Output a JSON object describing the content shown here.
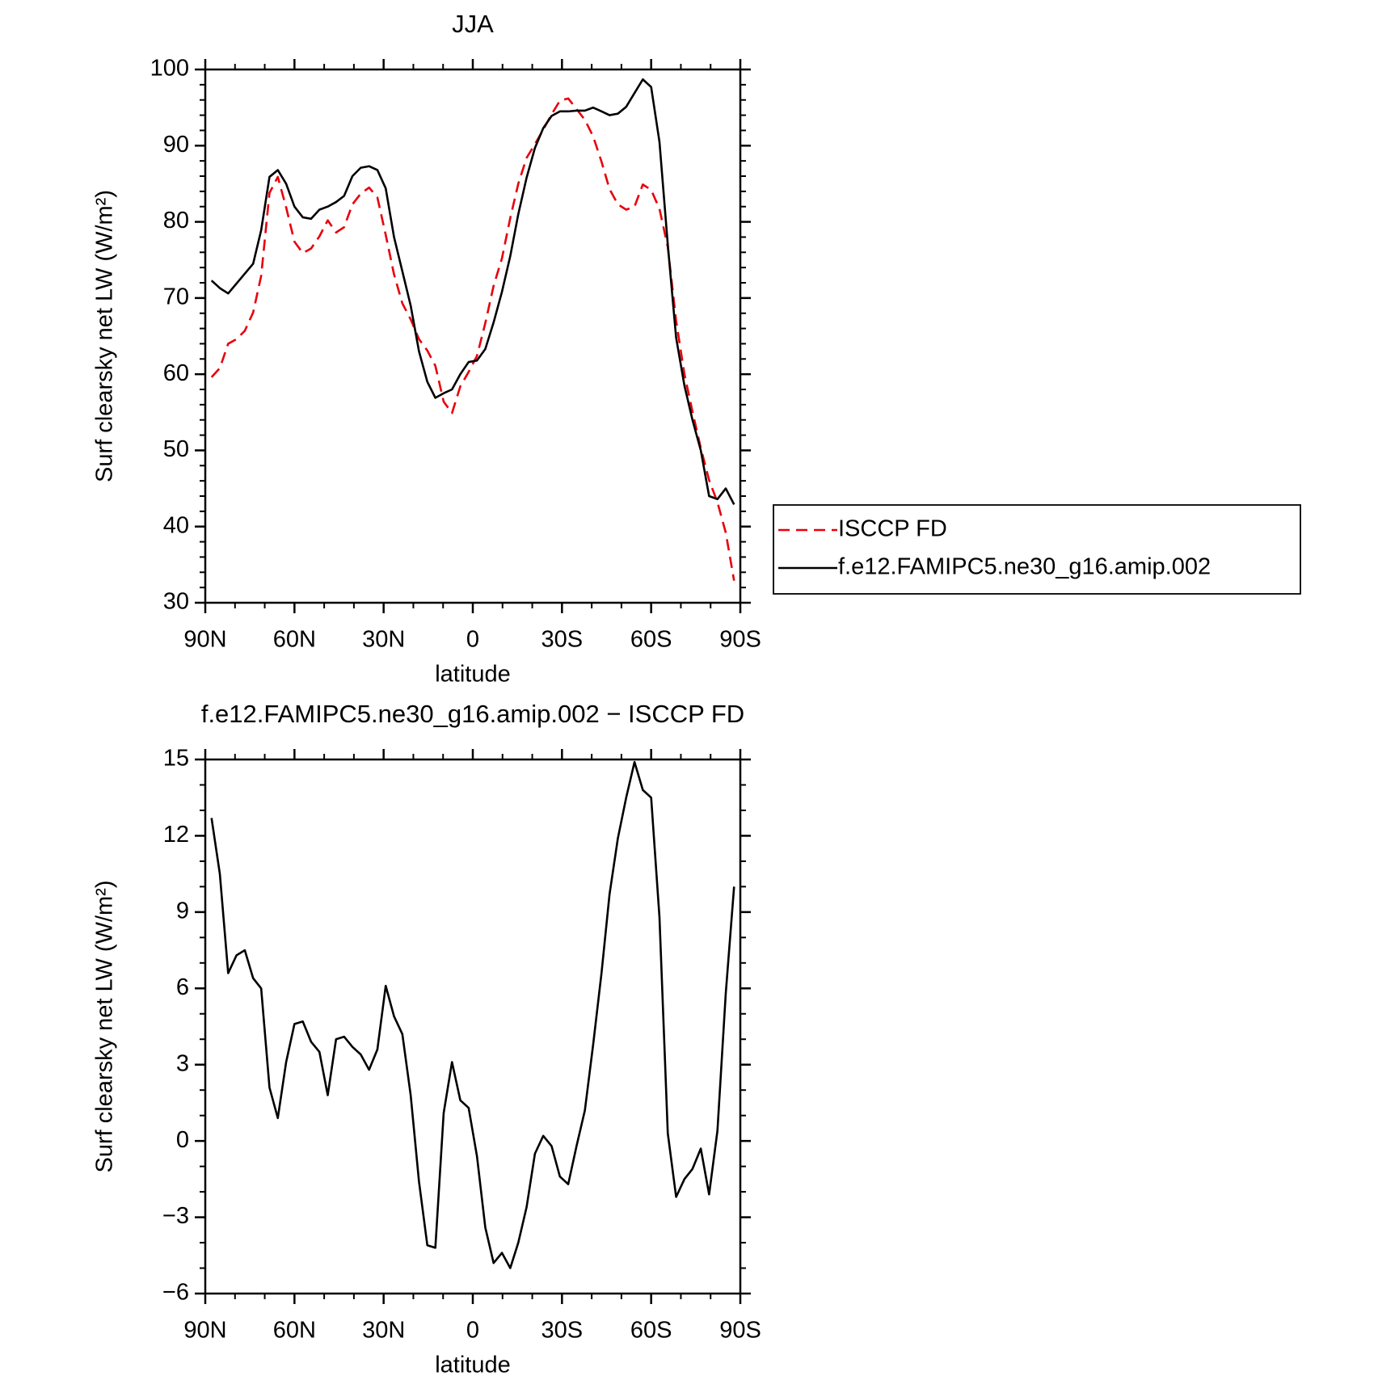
{
  "chart_data": [
    {
      "type": "line",
      "title": "JJA",
      "xlabel": "latitude",
      "ylabel": "Surf clearsky net LW (W/m²)",
      "xlim": [
        90,
        -90
      ],
      "xticks": [
        {
          "value": 90,
          "label": "90N"
        },
        {
          "value": 60,
          "label": "60N"
        },
        {
          "value": 30,
          "label": "30N"
        },
        0,
        {
          "value": -30,
          "label": "30S"
        },
        {
          "value": -60,
          "label": "60S"
        },
        {
          "value": -90,
          "label": "90S"
        }
      ],
      "ylim": [
        30,
        100
      ],
      "yticks": [
        30,
        40,
        50,
        60,
        70,
        80,
        90,
        100
      ],
      "legend": "right",
      "x": [
        87.9,
        85.1,
        82.3,
        79.5,
        76.7,
        73.9,
        71.2,
        68.4,
        65.6,
        62.8,
        60.0,
        57.2,
        54.4,
        51.6,
        48.8,
        46.0,
        43.3,
        40.5,
        37.7,
        34.9,
        32.1,
        29.3,
        26.5,
        23.7,
        20.9,
        18.1,
        15.3,
        12.6,
        9.8,
        7.0,
        4.2,
        1.4,
        -1.4,
        -4.2,
        -7.0,
        -9.8,
        -12.6,
        -15.3,
        -18.1,
        -20.9,
        -23.7,
        -26.5,
        -29.3,
        -32.1,
        -34.9,
        -37.7,
        -40.5,
        -43.3,
        -46.0,
        -48.8,
        -51.6,
        -54.4,
        -57.2,
        -60.0,
        -62.8,
        -65.6,
        -68.4,
        -71.2,
        -73.9,
        -76.7,
        -79.5,
        -82.3,
        -85.1,
        -87.9
      ],
      "series": [
        {
          "name": "ISCCP FD",
          "color": "#e8000b",
          "style": "dashed",
          "values": [
            59.6,
            60.8,
            64.0,
            64.6,
            65.7,
            68.1,
            72.9,
            83.8,
            85.9,
            81.9,
            77.4,
            75.9,
            76.5,
            78.1,
            80.2,
            78.6,
            79.3,
            82.3,
            83.7,
            84.5,
            83.2,
            78.3,
            73.1,
            69.3,
            67.2,
            64.6,
            63.1,
            61.1,
            56.4,
            54.9,
            58.4,
            60.3,
            62.4,
            66.7,
            71.6,
            75.2,
            80.5,
            85.0,
            88.4,
            90.2,
            92.1,
            94.1,
            95.9,
            96.2,
            94.8,
            93.4,
            91.2,
            87.9,
            84.3,
            82.3,
            81.6,
            82.0,
            84.9,
            84.2,
            81.7,
            76.7,
            67.0,
            60.0,
            55.1,
            50.3,
            46.1,
            43.2,
            39.2,
            32.9
          ]
        },
        {
          "name": "f.e12.FAMIPC5.ne30_g16.amip.002",
          "color": "#000000",
          "style": "solid",
          "values": [
            72.3,
            71.3,
            70.6,
            71.9,
            73.2,
            74.5,
            78.9,
            85.9,
            86.8,
            85,
            82,
            80.6,
            80.4,
            81.6,
            82,
            82.6,
            83.4,
            86.0,
            87.1,
            87.3,
            86.8,
            84.4,
            78,
            73.5,
            69,
            63,
            59,
            56.9,
            57.5,
            58,
            60,
            61.6,
            61.8,
            63.3,
            66.8,
            70.8,
            75.5,
            81,
            85.8,
            89.7,
            92.3,
            93.9,
            94.5,
            94.5,
            94.6,
            94.6,
            95,
            94.5,
            94,
            94.2,
            95.1,
            96.9,
            98.7,
            97.7,
            90.5,
            77,
            64.8,
            58.5,
            54,
            50,
            44,
            43.6,
            45,
            42.9
          ]
        }
      ]
    },
    {
      "type": "line",
      "title": "f.e12.FAMIPC5.ne30_g16.amip.002 − ISCCP FD",
      "xlabel": "latitude",
      "ylabel": "Surf clearsky net LW (W/m²)",
      "xlim": [
        90,
        -90
      ],
      "xticks": [
        {
          "value": 90,
          "label": "90N"
        },
        {
          "value": 60,
          "label": "60N"
        },
        {
          "value": 30,
          "label": "30N"
        },
        0,
        {
          "value": -30,
          "label": "30S"
        },
        {
          "value": -60,
          "label": "60S"
        },
        {
          "value": -90,
          "label": "90S"
        }
      ],
      "ylim": [
        -6,
        15
      ],
      "yticks": [
        {
          "value": -6,
          "label": "−6"
        },
        {
          "value": -3,
          "label": "−3"
        },
        0,
        3,
        6,
        9,
        12,
        15
      ],
      "x": [
        87.9,
        85.1,
        82.3,
        79.5,
        76.7,
        73.9,
        71.2,
        68.4,
        65.6,
        62.8,
        60.0,
        57.2,
        54.4,
        51.6,
        48.8,
        46.0,
        43.3,
        40.5,
        37.7,
        34.9,
        32.1,
        29.3,
        26.5,
        23.7,
        20.9,
        18.1,
        15.3,
        12.6,
        9.8,
        7.0,
        4.2,
        1.4,
        -1.4,
        -4.2,
        -7.0,
        -9.8,
        -12.6,
        -15.3,
        -18.1,
        -20.9,
        -23.7,
        -26.5,
        -29.3,
        -32.1,
        -34.9,
        -37.7,
        -40.5,
        -43.3,
        -46.0,
        -48.8,
        -51.6,
        -54.4,
        -57.2,
        -60.0,
        -62.8,
        -65.6,
        -68.4,
        -71.2,
        -73.9,
        -76.7,
        -79.5,
        -82.3,
        -85.1,
        -87.9
      ],
      "series": [
        {
          "color": "#000000",
          "style": "solid",
          "values": [
            12.7,
            10.5,
            6.6,
            7.3,
            7.5,
            6.4,
            6.0,
            2.1,
            0.9,
            3.1,
            4.6,
            4.7,
            3.9,
            3.5,
            1.8,
            4.0,
            4.1,
            3.7,
            3.4,
            2.8,
            3.6,
            6.1,
            4.9,
            4.2,
            1.8,
            -1.6,
            -4.1,
            -4.2,
            1.1,
            3.1,
            1.6,
            1.3,
            -0.6,
            -3.4,
            -4.8,
            -4.4,
            -5.0,
            -4.0,
            -2.6,
            -0.5,
            0.2,
            -0.2,
            -1.4,
            -1.7,
            -0.2,
            1.2,
            3.8,
            6.6,
            9.7,
            11.9,
            13.5,
            14.9,
            13.8,
            13.5,
            8.8,
            0.3,
            -2.2,
            -1.5,
            -1.1,
            -0.3,
            -2.1,
            0.4,
            5.8,
            10.0
          ]
        }
      ]
    }
  ]
}
